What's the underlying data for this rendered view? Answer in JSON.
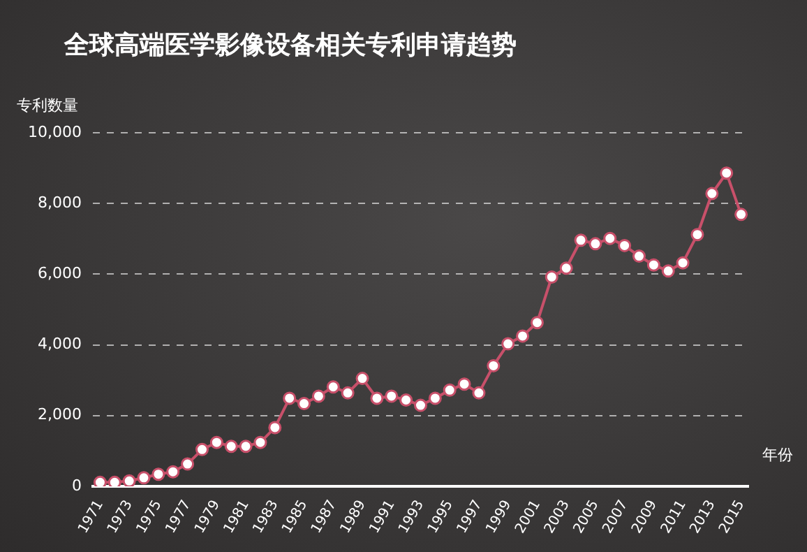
{
  "chart_data": {
    "type": "line",
    "title": "全球高端医学影像设备相关专利申请趋势",
    "xlabel": "年份",
    "ylabel": "专利数量",
    "categories": [
      "1971",
      null,
      "1973",
      null,
      "1975",
      null,
      "1977",
      null,
      "1979",
      null,
      "1981",
      null,
      "1983",
      null,
      "1985",
      null,
      "1987",
      null,
      "1989",
      null,
      "1991",
      null,
      "1993",
      null,
      "1995",
      null,
      "1997",
      null,
      "1999",
      null,
      "2001",
      null,
      "2003",
      null,
      "2005",
      null,
      "2007",
      null,
      "2009",
      null,
      "2011",
      null,
      "2013",
      null,
      "2015"
    ],
    "series": [
      {
        "color": "#c8506a",
        "values": [
          110,
          110,
          150,
          240,
          340,
          410,
          630,
          1040,
          1240,
          1130,
          1130,
          1240,
          1660,
          2490,
          2340,
          2550,
          2810,
          2640,
          3050,
          2490,
          2550,
          2440,
          2290,
          2490,
          2720,
          2890,
          2640,
          3410,
          4030,
          4250,
          4630,
          5920,
          6170,
          6960,
          6860,
          7010,
          6810,
          6510,
          6260,
          6090,
          6320,
          7120,
          8280,
          8860,
          7690
        ]
      }
    ],
    "ylim": [
      0,
      10000
    ],
    "yticks": [
      {
        "value": 0,
        "label": "0"
      },
      {
        "value": 2000,
        "label": "2,000"
      },
      {
        "value": 4000,
        "label": "4,000"
      },
      {
        "value": 6000,
        "label": "6,000"
      },
      {
        "value": 8000,
        "label": "8,000"
      },
      {
        "value": 10000,
        "label": "10,000"
      }
    ],
    "grid": "y",
    "marker": "circle",
    "line_style": "solid",
    "legend": false
  }
}
